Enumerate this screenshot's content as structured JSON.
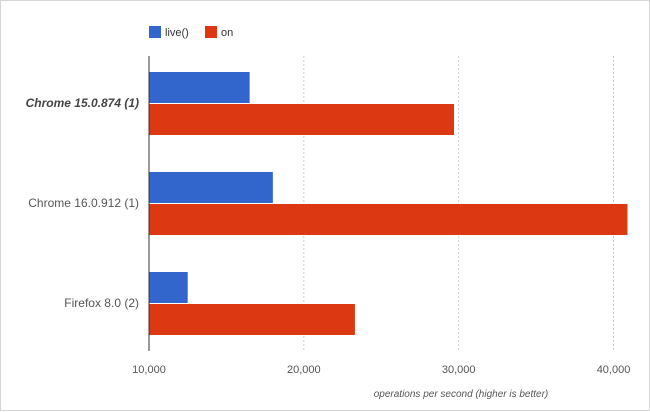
{
  "chart_data": {
    "type": "bar",
    "orientation": "horizontal",
    "categories": [
      "Chrome 15.0.874 (1)",
      "Chrome 16.0.912 (1)",
      "Firefox 8.0 (2)"
    ],
    "highlighted_category": 0,
    "series": [
      {
        "name": "live()",
        "color": "#3366cc",
        "values": [
          16500,
          18000,
          12500
        ]
      },
      {
        "name": "on",
        "color": "#dc3912",
        "values": [
          29700,
          40900,
          23300
        ]
      }
    ],
    "xlim": [
      10000,
      41000
    ],
    "xticks": [
      10000,
      20000,
      30000,
      40000
    ],
    "xtick_labels": [
      "10,000",
      "20,000",
      "30,000",
      "40,000"
    ],
    "xlabel": "operations per second (higher is better)",
    "ylabel": "",
    "title": "",
    "grid": "vertical",
    "legend": "top-left"
  }
}
